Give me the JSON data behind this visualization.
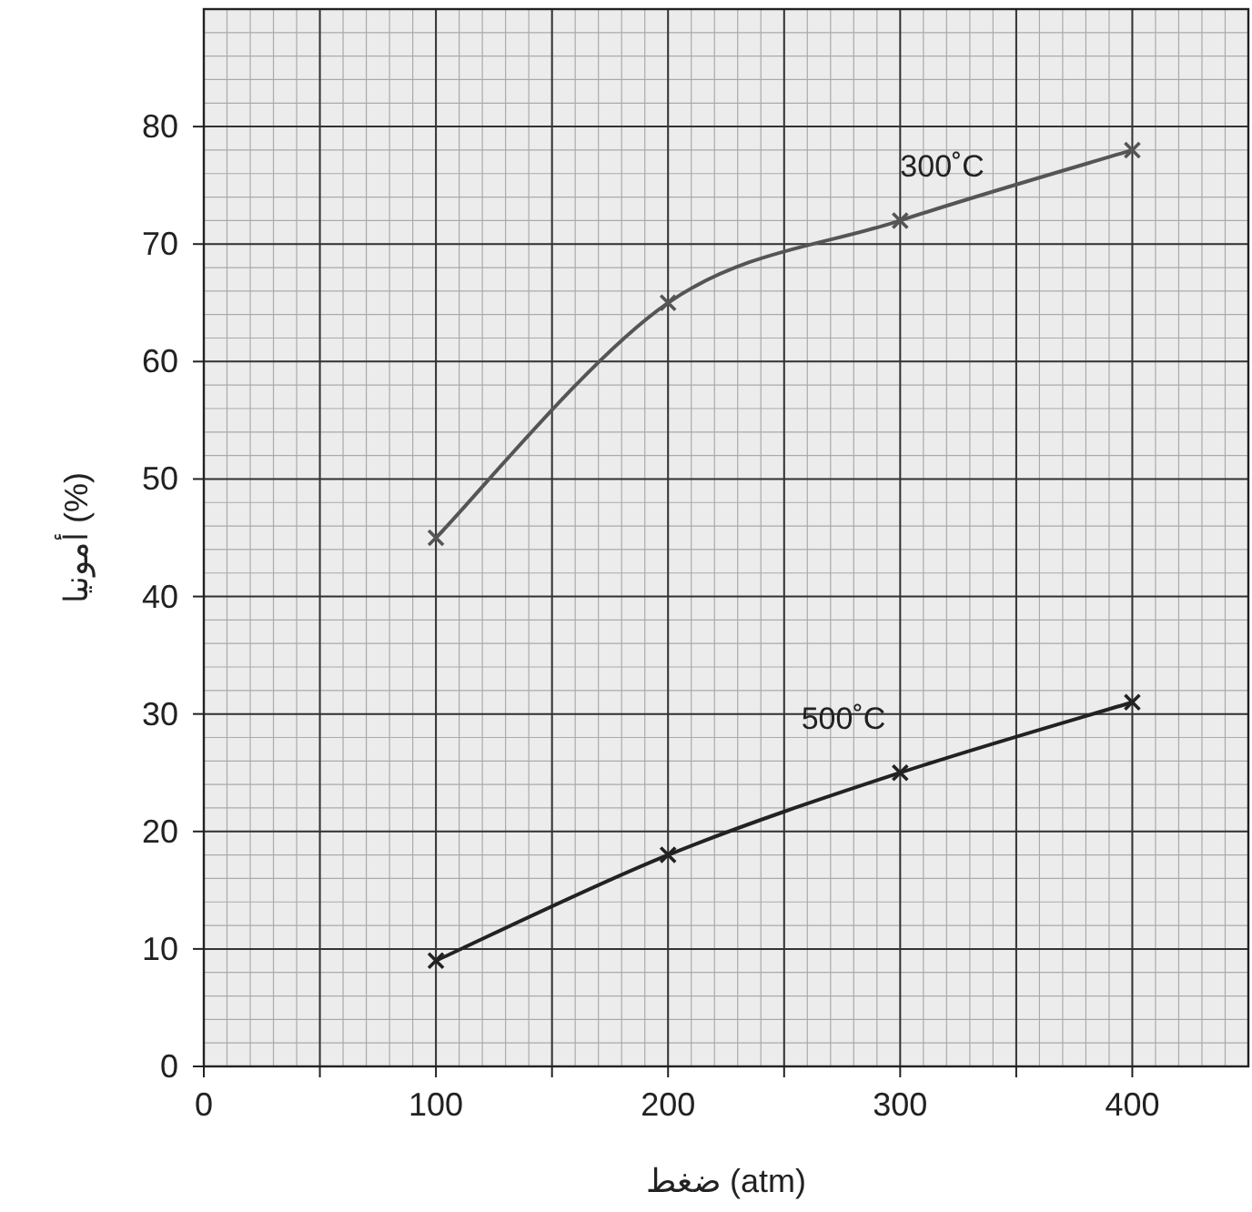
{
  "chart_data": {
    "type": "line",
    "xlabel": "ضغط (atm)",
    "ylabel": "أمونيا (%)",
    "xlim": [
      0,
      450
    ],
    "ylim": [
      0,
      90
    ],
    "xticks": [
      0,
      {
        "value": 50,
        "label": null
      },
      100,
      {
        "value": 150,
        "label": null
      },
      200,
      {
        "value": 250,
        "label": null
      },
      300,
      {
        "value": 350,
        "label": null
      },
      400
    ],
    "yticks": [
      0,
      10,
      20,
      30,
      40,
      50,
      60,
      70,
      80
    ],
    "grid": true,
    "marker": "cross",
    "line_style": "solid",
    "series": [
      {
        "name": "300˚C",
        "color": "#555555",
        "x": [
          100,
          200,
          300,
          400
        ],
        "values": [
          45,
          65,
          72,
          78
        ]
      },
      {
        "name": "500˚C",
        "color": "#222222",
        "x": [
          100,
          200,
          300,
          400
        ],
        "values": [
          9,
          18,
          25,
          31
        ]
      }
    ]
  }
}
